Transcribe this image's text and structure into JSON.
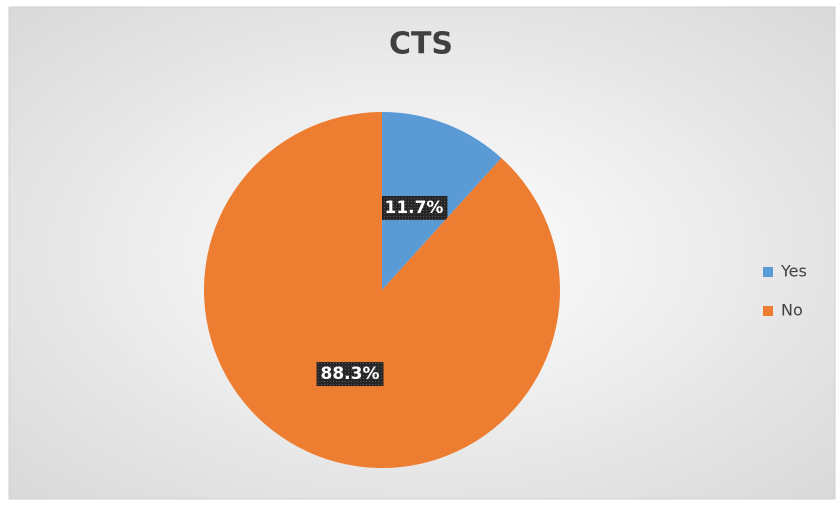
{
  "chart_data": {
    "type": "pie",
    "title": "CTS",
    "categories": [
      "Yes",
      "No"
    ],
    "values": [
      11.7,
      88.3
    ],
    "value_labels": [
      "11.7%",
      "88.3%"
    ],
    "colors": [
      "#5b9bd5",
      "#ed7d31"
    ],
    "legend": "right"
  }
}
